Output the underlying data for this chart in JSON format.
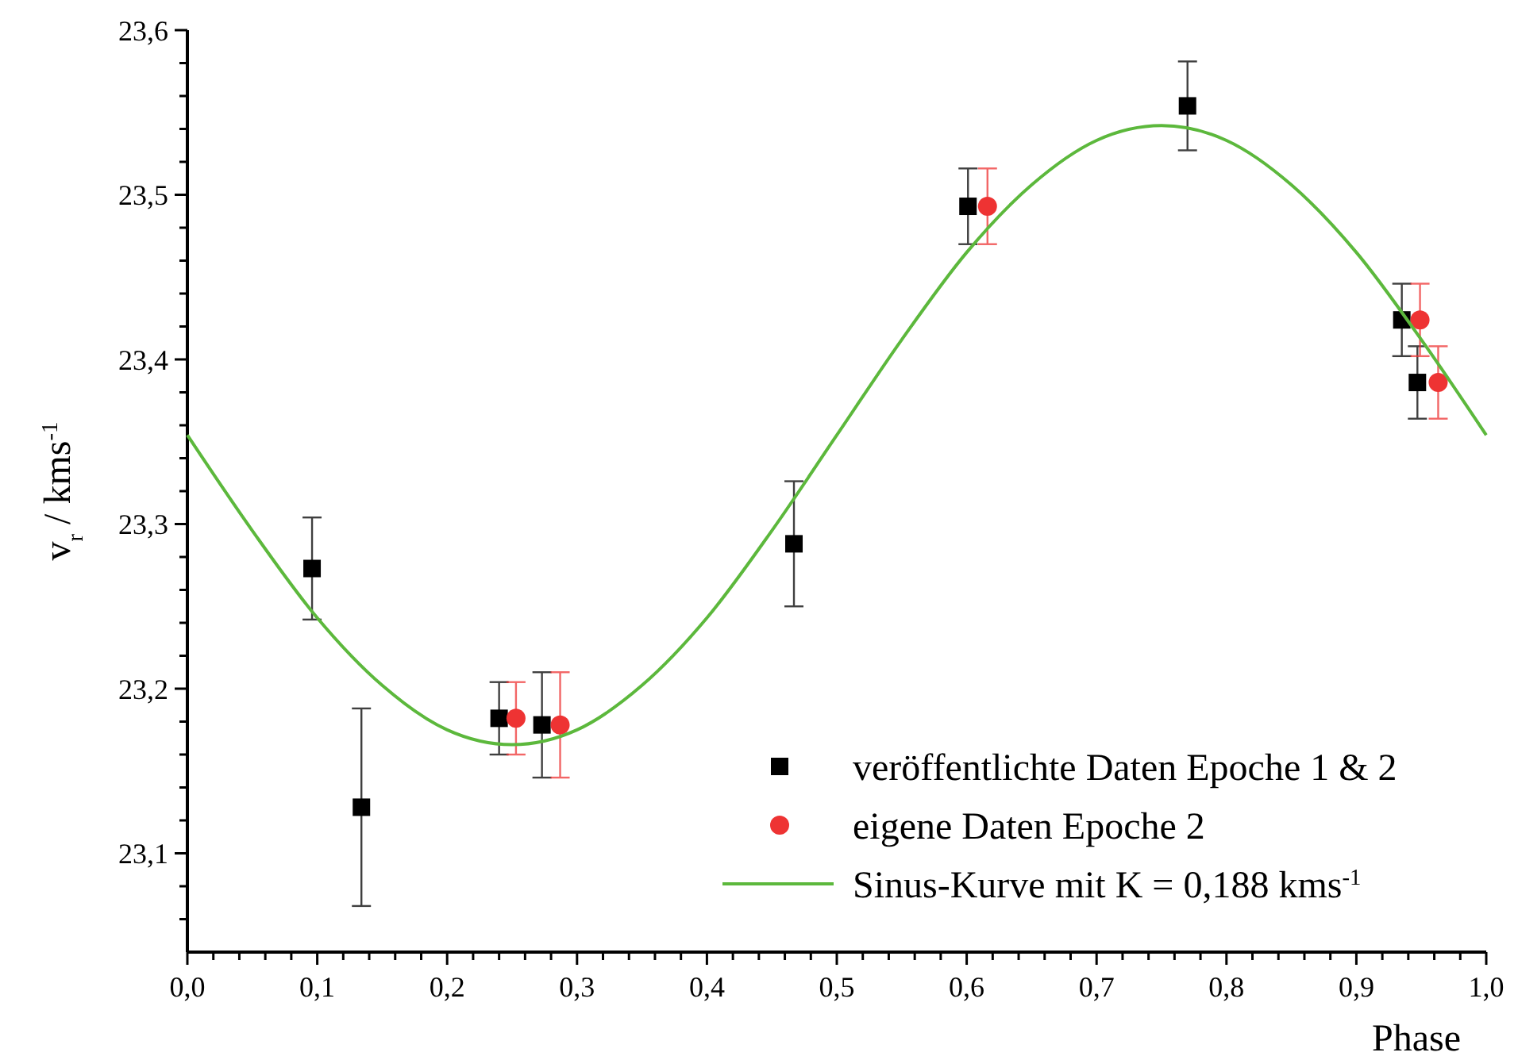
{
  "chart_data": {
    "type": "scatter",
    "xlabel": "Phase",
    "ylabel": "v$_{r}$ / kms$^{-1}$",
    "xlim": [
      0,
      1.0
    ],
    "ylim": [
      23.04,
      23.6
    ],
    "xticks": [
      {
        "value": 0,
        "label": "0,0"
      },
      {
        "value": 0.02,
        "label": null
      },
      {
        "value": 0.04,
        "label": null
      },
      {
        "value": 0.06,
        "label": null
      },
      {
        "value": 0.08,
        "label": null
      },
      {
        "value": 0.1,
        "label": "0,1"
      },
      {
        "value": 0.12,
        "label": null
      },
      {
        "value": 0.14,
        "label": null
      },
      {
        "value": 0.16,
        "label": null
      },
      {
        "value": 0.18,
        "label": null
      },
      {
        "value": 0.2,
        "label": "0,2"
      },
      {
        "value": 0.22,
        "label": null
      },
      {
        "value": 0.24,
        "label": null
      },
      {
        "value": 0.26,
        "label": null
      },
      {
        "value": 0.28,
        "label": null
      },
      {
        "value": 0.3,
        "label": "0,3"
      },
      {
        "value": 0.32,
        "label": null
      },
      {
        "value": 0.34,
        "label": null
      },
      {
        "value": 0.36,
        "label": null
      },
      {
        "value": 0.38,
        "label": null
      },
      {
        "value": 0.4,
        "label": "0,4"
      },
      {
        "value": 0.42,
        "label": null
      },
      {
        "value": 0.44,
        "label": null
      },
      {
        "value": 0.46,
        "label": null
      },
      {
        "value": 0.48,
        "label": null
      },
      {
        "value": 0.5,
        "label": "0,5"
      },
      {
        "value": 0.52,
        "label": null
      },
      {
        "value": 0.54,
        "label": null
      },
      {
        "value": 0.56,
        "label": null
      },
      {
        "value": 0.58,
        "label": null
      },
      {
        "value": 0.6,
        "label": "0,6"
      },
      {
        "value": 0.62,
        "label": null
      },
      {
        "value": 0.64,
        "label": null
      },
      {
        "value": 0.66,
        "label": null
      },
      {
        "value": 0.68,
        "label": null
      },
      {
        "value": 0.7,
        "label": "0,7"
      },
      {
        "value": 0.72,
        "label": null
      },
      {
        "value": 0.74,
        "label": null
      },
      {
        "value": 0.76,
        "label": null
      },
      {
        "value": 0.78,
        "label": null
      },
      {
        "value": 0.8,
        "label": "0,8"
      },
      {
        "value": 0.82,
        "label": null
      },
      {
        "value": 0.84,
        "label": null
      },
      {
        "value": 0.86,
        "label": null
      },
      {
        "value": 0.88,
        "label": null
      },
      {
        "value": 0.9,
        "label": "0,9"
      },
      {
        "value": 0.92,
        "label": null
      },
      {
        "value": 0.94,
        "label": null
      },
      {
        "value": 0.96,
        "label": null
      },
      {
        "value": 0.98,
        "label": null
      },
      {
        "value": 1.0,
        "label": "1,0"
      }
    ],
    "yticks": [
      {
        "value": 23.06,
        "label": null
      },
      {
        "value": 23.08,
        "label": null
      },
      {
        "value": 23.1,
        "label": "23,1"
      },
      {
        "value": 23.12,
        "label": null
      },
      {
        "value": 23.14,
        "label": null
      },
      {
        "value": 23.16,
        "label": null
      },
      {
        "value": 23.18,
        "label": null
      },
      {
        "value": 23.2,
        "label": "23,2"
      },
      {
        "value": 23.22,
        "label": null
      },
      {
        "value": 23.24,
        "label": null
      },
      {
        "value": 23.26,
        "label": null
      },
      {
        "value": 23.28,
        "label": null
      },
      {
        "value": 23.3,
        "label": "23,3"
      },
      {
        "value": 23.32,
        "label": null
      },
      {
        "value": 23.34,
        "label": null
      },
      {
        "value": 23.36,
        "label": null
      },
      {
        "value": 23.38,
        "label": null
      },
      {
        "value": 23.4,
        "label": "23,4"
      },
      {
        "value": 23.42,
        "label": null
      },
      {
        "value": 23.44,
        "label": null
      },
      {
        "value": 23.46,
        "label": null
      },
      {
        "value": 23.48,
        "label": null
      },
      {
        "value": 23.5,
        "label": "23,5"
      },
      {
        "value": 23.52,
        "label": null
      },
      {
        "value": 23.54,
        "label": null
      },
      {
        "value": 23.56,
        "label": null
      },
      {
        "value": 23.58,
        "label": null
      },
      {
        "value": 23.6,
        "label": "23,6"
      }
    ],
    "grid": false,
    "legend": "bottom right",
    "series": [
      {
        "name": "veröffentlichte Daten Epoche 1 & 2",
        "marker": "square",
        "color": "#000000",
        "x": [
          0.096,
          0.134,
          0.24,
          0.273,
          0.467,
          0.601,
          0.77,
          0.935,
          0.947
        ],
        "values": [
          23.273,
          23.128,
          23.182,
          23.178,
          23.288,
          23.493,
          23.554,
          23.424,
          23.386
        ],
        "errors": [
          0.031,
          0.06,
          0.022,
          0.032,
          0.038,
          0.023,
          0.027,
          0.022,
          0.022
        ]
      },
      {
        "name": "eigene Daten Epoche 2",
        "marker": "circle",
        "color": "#ee3333",
        "x": [
          0.253,
          0.287,
          0.616,
          0.949,
          0.963
        ],
        "values": [
          23.182,
          23.178,
          23.493,
          23.424,
          23.386
        ],
        "errors": [
          0.022,
          0.032,
          0.023,
          0.022,
          0.022
        ]
      },
      {
        "name": "Sinus-Kurve mit K = 0,188 kms$^{-1}$",
        "type": "line",
        "marker": "none",
        "line_style": "solid",
        "color": "#5cb83c",
        "x": [
          0,
          0.05,
          0.1,
          0.15,
          0.2,
          0.25,
          0.3,
          0.35,
          0.4,
          0.45,
          0.5,
          0.55,
          0.6,
          0.65,
          0.7,
          0.75,
          0.8,
          0.85,
          0.9,
          0.95,
          1.0
        ],
        "values": [
          23.354,
          23.296,
          23.243,
          23.202,
          23.175,
          23.166,
          23.175,
          23.202,
          23.243,
          23.296,
          23.354,
          23.412,
          23.465,
          23.506,
          23.533,
          23.542,
          23.533,
          23.506,
          23.465,
          23.412,
          23.354
        ]
      }
    ]
  }
}
